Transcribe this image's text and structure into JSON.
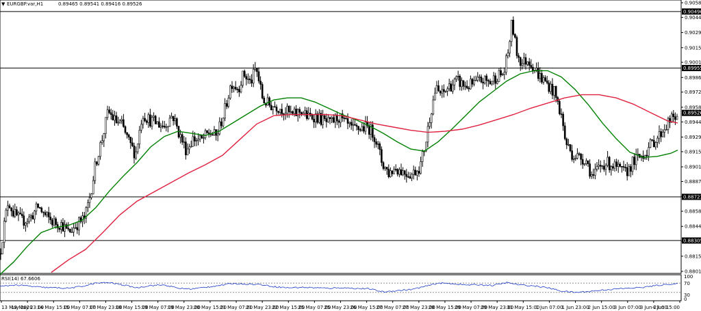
{
  "header": {
    "menu_marker": "▼",
    "symbol_timeframe": "EURGBP.var,H1",
    "ohlc": "0.89465 0.89541 0.89416 0.89526"
  },
  "rsi_panel": {
    "label": "RSI(14) 67.6606",
    "levels": [
      70,
      30
    ],
    "level_labels": [
      "70",
      "30"
    ],
    "scale_max": "100",
    "scale_min": "0"
  },
  "chart_data": {
    "type": "line",
    "subtype": "candlestick",
    "title": "",
    "xlabel": "",
    "ylabel": "",
    "ylim": [
      0.8801,
      0.9058
    ],
    "grid": false,
    "price_ticks": [
      0.9058,
      0.9044,
      0.90295,
      0.9015,
      0.9001,
      0.89865,
      0.89725,
      0.8958,
      0.8944,
      0.89295,
      0.89155,
      0.8901,
      0.8887,
      0.88725,
      0.88585,
      0.8844,
      0.883,
      0.88155,
      0.8801
    ],
    "price_tick_labels": [
      "0.90580",
      "0.90440",
      "0.90295",
      "0.90150",
      "0.90010",
      "0.89865",
      "0.89725",
      "0.89580",
      "0.89440",
      "0.89295",
      "0.89155",
      "0.89010",
      "0.88870",
      "0.88725",
      "0.88585",
      "0.88440",
      "0.88300",
      "0.88155",
      "0.88010"
    ],
    "x_tick_labels": [
      "13 May 2020",
      "13 May 23:00",
      "14 May 15:00",
      "15 May 07:00",
      "17 May 23:00",
      "18 May 15:00",
      "19 May 07:00",
      "19 May 23:00",
      "20 May 15:00",
      "21 May 07:00",
      "21 May 23:00",
      "22 May 15:00",
      "25 May 07:00",
      "25 May 23:00",
      "26 May 15:00",
      "27 May 07:00",
      "27 May 23:00",
      "28 May 15:00",
      "29 May 07:00",
      "29 May 23:00",
      "31 May 15:00",
      "1 Jun 07:00",
      "1 Jun 23:00",
      "2 Jun 15:00",
      "3 Jun 07:00",
      "3 Jun 23:00",
      "4 Jun 15:00"
    ],
    "horizontal_levels": [
      0.90496,
      0.89955,
      0.88723,
      0.88305
    ],
    "horizontal_level_labels": [
      "0.90496",
      "0.89955",
      "0.88723",
      "0.88305"
    ],
    "current_price": 0.89526,
    "current_price_label": "0.89526",
    "close_path": [
      [
        0,
        0.8818
      ],
      [
        6,
        0.8845
      ],
      [
        12,
        0.8869
      ],
      [
        20,
        0.8856
      ],
      [
        32,
        0.8849
      ],
      [
        44,
        0.8852
      ],
      [
        56,
        0.8863
      ],
      [
        66,
        0.8854
      ],
      [
        78,
        0.8848
      ],
      [
        90,
        0.8846
      ],
      [
        100,
        0.8838
      ],
      [
        112,
        0.8846
      ],
      [
        124,
        0.8852
      ],
      [
        132,
        0.8875
      ],
      [
        140,
        0.8905
      ],
      [
        150,
        0.893
      ],
      [
        158,
        0.8954
      ],
      [
        168,
        0.8945
      ],
      [
        178,
        0.8941
      ],
      [
        188,
        0.8925
      ],
      [
        198,
        0.8913
      ],
      [
        208,
        0.8952
      ],
      [
        218,
        0.8946
      ],
      [
        228,
        0.8943
      ],
      [
        240,
        0.894
      ],
      [
        252,
        0.8951
      ],
      [
        262,
        0.8932
      ],
      [
        272,
        0.8917
      ],
      [
        282,
        0.8928
      ],
      [
        294,
        0.8926
      ],
      [
        306,
        0.8934
      ],
      [
        316,
        0.893
      ],
      [
        328,
        0.8954
      ],
      [
        338,
        0.8982
      ],
      [
        348,
        0.8976
      ],
      [
        356,
        0.899
      ],
      [
        366,
        0.8981
      ],
      [
        374,
        0.8996
      ],
      [
        384,
        0.8965
      ],
      [
        394,
        0.896
      ],
      [
        404,
        0.8959
      ],
      [
        416,
        0.8955
      ],
      [
        428,
        0.895
      ],
      [
        440,
        0.8955
      ],
      [
        450,
        0.8948
      ],
      [
        460,
        0.895
      ],
      [
        472,
        0.8945
      ],
      [
        482,
        0.8942
      ],
      [
        494,
        0.8949
      ],
      [
        506,
        0.8941
      ],
      [
        516,
        0.8936
      ],
      [
        526,
        0.8938
      ],
      [
        538,
        0.8939
      ],
      [
        548,
        0.893
      ],
      [
        558,
        0.8905
      ],
      [
        568,
        0.8895
      ],
      [
        578,
        0.89
      ],
      [
        590,
        0.8896
      ],
      [
        602,
        0.8894
      ],
      [
        614,
        0.8902
      ],
      [
        622,
        0.8925
      ],
      [
        628,
        0.895
      ],
      [
        636,
        0.8975
      ],
      [
        646,
        0.897
      ],
      [
        656,
        0.8978
      ],
      [
        668,
        0.8983
      ],
      [
        680,
        0.8978
      ],
      [
        692,
        0.898
      ],
      [
        704,
        0.8984
      ],
      [
        716,
        0.8982
      ],
      [
        726,
        0.8988
      ],
      [
        736,
        0.899
      ],
      [
        742,
        0.901
      ],
      [
        748,
        0.904
      ],
      [
        754,
        0.9012
      ],
      [
        762,
        0.9
      ],
      [
        772,
        0.9004
      ],
      [
        780,
        0.8996
      ],
      [
        790,
        0.8986
      ],
      [
        800,
        0.898
      ],
      [
        810,
        0.8972
      ],
      [
        820,
        0.895
      ],
      [
        826,
        0.8925
      ],
      [
        836,
        0.8913
      ],
      [
        846,
        0.891
      ],
      [
        856,
        0.8908
      ],
      [
        866,
        0.889
      ],
      [
        874,
        0.89
      ],
      [
        884,
        0.8905
      ],
      [
        894,
        0.8903
      ],
      [
        904,
        0.8898
      ],
      [
        914,
        0.8895
      ],
      [
        924,
        0.8905
      ],
      [
        934,
        0.891
      ],
      [
        944,
        0.8916
      ],
      [
        954,
        0.8925
      ],
      [
        962,
        0.893
      ],
      [
        970,
        0.8938
      ],
      [
        978,
        0.8945
      ],
      [
        986,
        0.8948
      ],
      [
        990,
        0.89526
      ]
    ],
    "series": [
      {
        "name": "",
        "color": "#008000",
        "points": [
          [
            0,
            0.8798
          ],
          [
            20,
            0.881
          ],
          [
            40,
            0.8825
          ],
          [
            60,
            0.8838
          ],
          [
            80,
            0.8843
          ],
          [
            100,
            0.8845
          ],
          [
            120,
            0.885
          ],
          [
            140,
            0.8862
          ],
          [
            160,
            0.8878
          ],
          [
            180,
            0.8892
          ],
          [
            200,
            0.8905
          ],
          [
            220,
            0.892
          ],
          [
            240,
            0.893
          ],
          [
            260,
            0.8935
          ],
          [
            280,
            0.8933
          ],
          [
            300,
            0.8931
          ],
          [
            320,
            0.8935
          ],
          [
            340,
            0.8943
          ],
          [
            360,
            0.8951
          ],
          [
            380,
            0.8959
          ],
          [
            400,
            0.8965
          ],
          [
            420,
            0.8967
          ],
          [
            440,
            0.8967
          ],
          [
            460,
            0.8963
          ],
          [
            480,
            0.8957
          ],
          [
            500,
            0.8951
          ],
          [
            520,
            0.8946
          ],
          [
            540,
            0.894
          ],
          [
            560,
            0.8933
          ],
          [
            580,
            0.8925
          ],
          [
            600,
            0.8918
          ],
          [
            620,
            0.8916
          ],
          [
            640,
            0.8925
          ],
          [
            660,
            0.8937
          ],
          [
            680,
            0.895
          ],
          [
            700,
            0.8963
          ],
          [
            720,
            0.8973
          ],
          [
            740,
            0.8983
          ],
          [
            760,
            0.899
          ],
          [
            780,
            0.8993
          ],
          [
            800,
            0.8993
          ],
          [
            820,
            0.8987
          ],
          [
            840,
            0.8975
          ],
          [
            860,
            0.896
          ],
          [
            880,
            0.8943
          ],
          [
            900,
            0.8928
          ],
          [
            920,
            0.8915
          ],
          [
            940,
            0.891
          ],
          [
            960,
            0.8911
          ],
          [
            980,
            0.8914
          ],
          [
            990,
            0.8917
          ]
        ]
      },
      {
        "name": "",
        "color": "#e0203e",
        "points": [
          [
            75,
            0.88
          ],
          [
            100,
            0.8812
          ],
          [
            125,
            0.8822
          ],
          [
            150,
            0.8838
          ],
          [
            175,
            0.8855
          ],
          [
            200,
            0.8868
          ],
          [
            225,
            0.8877
          ],
          [
            250,
            0.8886
          ],
          [
            275,
            0.8895
          ],
          [
            300,
            0.8903
          ],
          [
            325,
            0.8912
          ],
          [
            350,
            0.8927
          ],
          [
            375,
            0.8942
          ],
          [
            400,
            0.895
          ],
          [
            425,
            0.8951
          ],
          [
            450,
            0.8951
          ],
          [
            475,
            0.8951
          ],
          [
            500,
            0.895
          ],
          [
            525,
            0.8946
          ],
          [
            550,
            0.8942
          ],
          [
            575,
            0.8939
          ],
          [
            600,
            0.8936
          ],
          [
            625,
            0.8934
          ],
          [
            650,
            0.8935
          ],
          [
            675,
            0.8937
          ],
          [
            700,
            0.8941
          ],
          [
            725,
            0.8946
          ],
          [
            750,
            0.8951
          ],
          [
            775,
            0.8957
          ],
          [
            800,
            0.8962
          ],
          [
            825,
            0.8967
          ],
          [
            850,
            0.897
          ],
          [
            875,
            0.897
          ],
          [
            900,
            0.8967
          ],
          [
            925,
            0.8961
          ],
          [
            950,
            0.8953
          ],
          [
            975,
            0.8945
          ],
          [
            990,
            0.8943
          ]
        ]
      }
    ],
    "rsi_values": [
      [
        0,
        55
      ],
      [
        20,
        62
      ],
      [
        40,
        58
      ],
      [
        60,
        52
      ],
      [
        80,
        50
      ],
      [
        100,
        48
      ],
      [
        120,
        56
      ],
      [
        140,
        70
      ],
      [
        160,
        72
      ],
      [
        180,
        62
      ],
      [
        200,
        50
      ],
      [
        220,
        60
      ],
      [
        240,
        62
      ],
      [
        260,
        48
      ],
      [
        280,
        45
      ],
      [
        300,
        52
      ],
      [
        320,
        60
      ],
      [
        340,
        68
      ],
      [
        360,
        66
      ],
      [
        380,
        64
      ],
      [
        400,
        55
      ],
      [
        420,
        50
      ],
      [
        440,
        52
      ],
      [
        460,
        50
      ],
      [
        480,
        48
      ],
      [
        500,
        50
      ],
      [
        520,
        47
      ],
      [
        540,
        45
      ],
      [
        560,
        32
      ],
      [
        580,
        38
      ],
      [
        600,
        42
      ],
      [
        620,
        55
      ],
      [
        640,
        70
      ],
      [
        660,
        68
      ],
      [
        680,
        62
      ],
      [
        700,
        63
      ],
      [
        720,
        60
      ],
      [
        740,
        72
      ],
      [
        760,
        62
      ],
      [
        780,
        58
      ],
      [
        800,
        50
      ],
      [
        820,
        36
      ],
      [
        840,
        30
      ],
      [
        860,
        34
      ],
      [
        880,
        40
      ],
      [
        900,
        45
      ],
      [
        920,
        48
      ],
      [
        940,
        52
      ],
      [
        960,
        60
      ],
      [
        980,
        66
      ],
      [
        990,
        67.66
      ]
    ]
  }
}
